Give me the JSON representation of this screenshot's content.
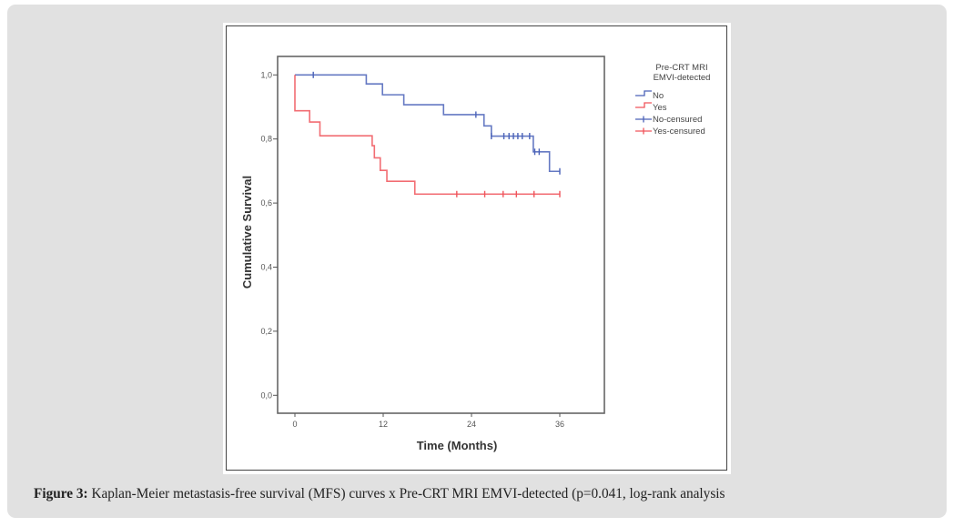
{
  "caption": {
    "label": "Figure 3:",
    "text": " Kaplan-Meier metastasis-free survival (MFS) curves x Pre-CRT MRI EMVI-detected (p=0.041, log-rank analysis"
  },
  "chart_data": {
    "type": "line",
    "subtype": "kaplan-meier-step",
    "title": "",
    "xlabel": "Time (Months)",
    "ylabel": "Cumulative Survival",
    "xlim": [
      -1.5,
      44
    ],
    "ylim": [
      -0.08,
      1.08
    ],
    "xticks": [
      0,
      12,
      24,
      36
    ],
    "xtick_labels": [
      "0",
      "12",
      "24",
      "36"
    ],
    "yticks": [
      0.0,
      0.2,
      0.4,
      0.6,
      0.8,
      1.0
    ],
    "ytick_labels": [
      "0,0",
      "0,2",
      "0,4",
      "0,6",
      "0,8",
      "1,0"
    ],
    "grid": false,
    "legend": {
      "title_lines": [
        "Pre-CRT MRI",
        "EMVI-detected"
      ],
      "placement": "right-outside-top",
      "entries": [
        {
          "label": "No",
          "kind": "step",
          "color": "#4a62b8"
        },
        {
          "label": "Yes",
          "kind": "step",
          "color": "#f0545a"
        },
        {
          "label": "No-censured",
          "kind": "censor",
          "color": "#4a62b8"
        },
        {
          "label": "Yes-censured",
          "kind": "censor",
          "color": "#f0545a"
        }
      ]
    },
    "series": [
      {
        "name": "No",
        "color": "#4a62b8",
        "steps": [
          {
            "t": 0,
            "s": 1.0
          },
          {
            "t": 9.7,
            "s": 0.972
          },
          {
            "t": 11.9,
            "s": 0.938
          },
          {
            "t": 14.8,
            "s": 0.907
          },
          {
            "t": 20.2,
            "s": 0.876
          },
          {
            "t": 25.7,
            "s": 0.841
          },
          {
            "t": 26.7,
            "s": 0.809
          },
          {
            "t": 32.4,
            "s": 0.76
          },
          {
            "t": 34.6,
            "s": 0.699
          }
        ],
        "end_t": 36,
        "censored_t": [
          2.5,
          24.6,
          26.7,
          28.4,
          29.1,
          29.7,
          30.3,
          30.9,
          31.9,
          32.6,
          33.2,
          36
        ]
      },
      {
        "name": "Yes",
        "color": "#f0545a",
        "steps": [
          {
            "t": 0,
            "s": 1.0
          },
          {
            "t": 0,
            "s": 0.888
          },
          {
            "t": 2.0,
            "s": 0.853
          },
          {
            "t": 3.4,
            "s": 0.81
          },
          {
            "t": 10.5,
            "s": 0.779
          },
          {
            "t": 10.8,
            "s": 0.741
          },
          {
            "t": 11.6,
            "s": 0.702
          },
          {
            "t": 12.5,
            "s": 0.668
          },
          {
            "t": 16.3,
            "s": 0.628
          }
        ],
        "end_t": 36,
        "censored_t": [
          22.0,
          25.8,
          28.3,
          30.1,
          32.5,
          36
        ]
      }
    ]
  }
}
